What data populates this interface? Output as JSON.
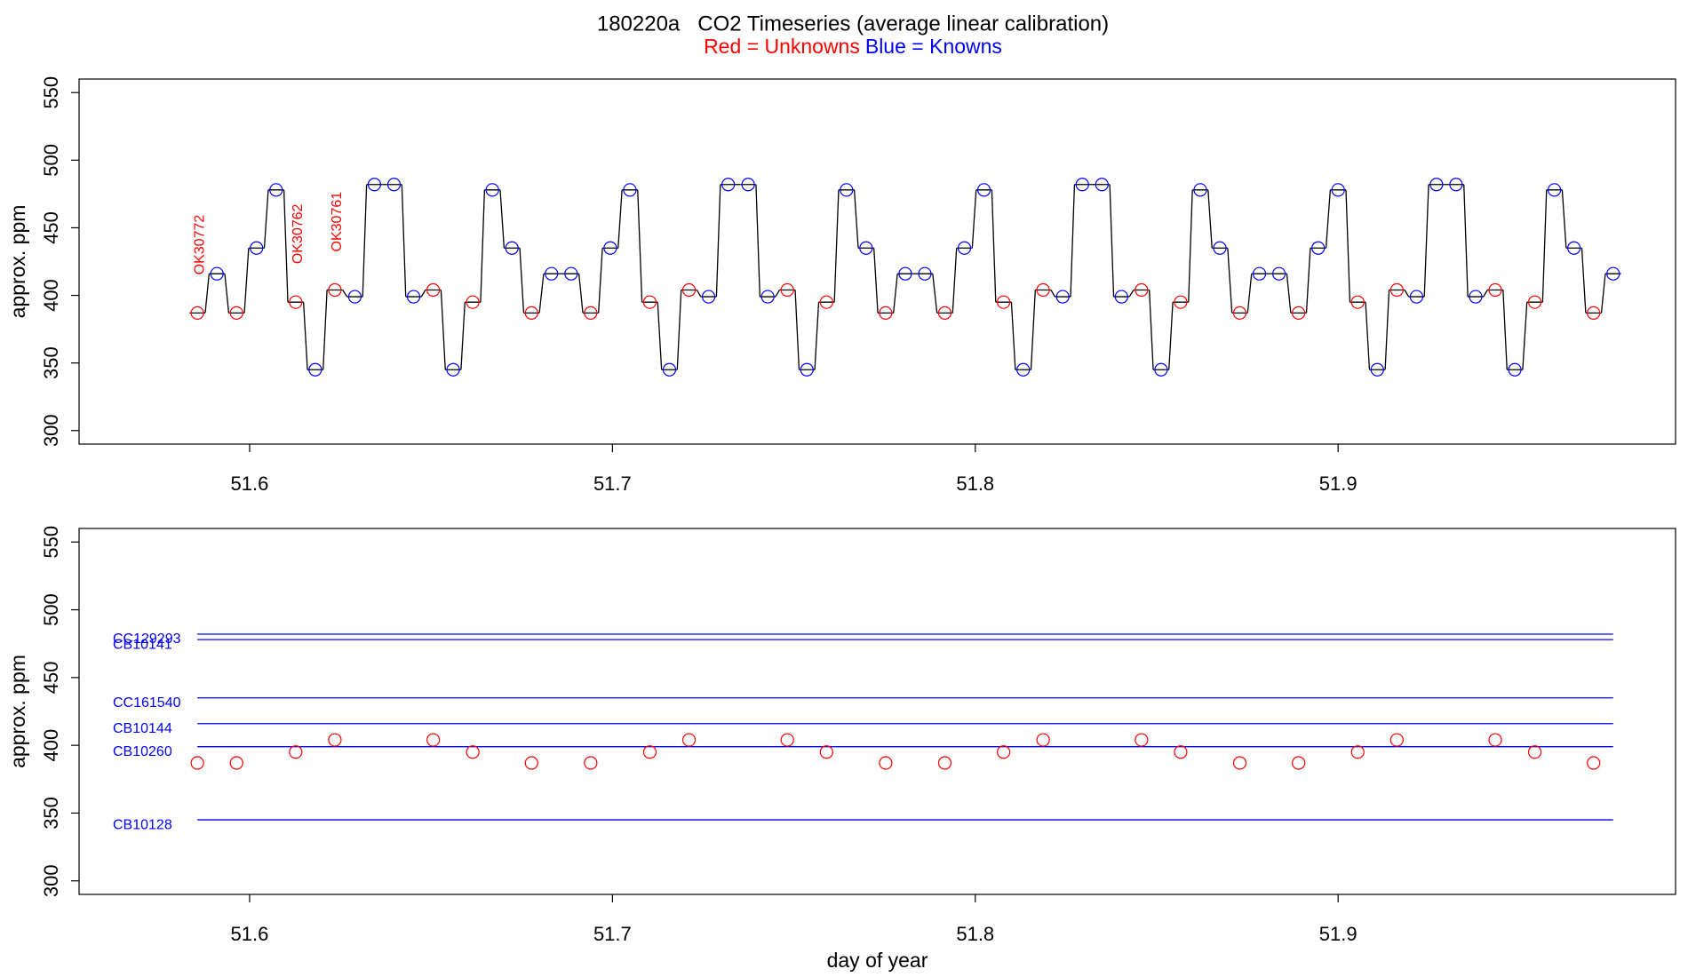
{
  "chart_data": [
    {
      "type": "line",
      "title": "180220a   CO2 Timeseries (average linear calibration)",
      "ylabel": "approx. ppm",
      "xlim": [
        51.553,
        51.993
      ],
      "ylim": [
        290,
        560
      ],
      "xticks": [
        51.6,
        51.7,
        51.8,
        51.9
      ],
      "yticks": [
        300,
        350,
        400,
        450,
        500,
        550
      ],
      "annotations": [
        "OK30772",
        "OK30762",
        "OK30761"
      ],
      "annotation_color": "red",
      "x": [
        51.5856,
        51.591,
        51.5964,
        51.6019,
        51.6073,
        51.6127,
        51.6181,
        51.6235,
        51.629,
        51.6344,
        51.6398,
        51.6452,
        51.6506,
        51.6561,
        51.6615,
        51.6669,
        51.6723,
        51.6777,
        51.6832,
        51.6886,
        51.694,
        51.6994,
        51.7048,
        51.7103,
        51.7157,
        51.7211,
        51.7265,
        51.7319,
        51.7374,
        51.7428,
        51.7482,
        51.7536,
        51.759,
        51.7645,
        51.7699,
        51.7753,
        51.7807,
        51.7861,
        51.7916,
        51.797,
        51.8024,
        51.8078,
        51.8132,
        51.8187,
        51.8241,
        51.8295,
        51.8349,
        51.8403,
        51.8458,
        51.8512,
        51.8566,
        51.862,
        51.8674,
        51.8729,
        51.8783,
        51.8837,
        51.8891,
        51.8945,
        51.9,
        51.9054,
        51.9108,
        51.9162,
        51.9216,
        51.9271,
        51.9325,
        51.9379,
        51.9433,
        51.9487,
        51.9542,
        51.9596,
        51.965,
        51.9704,
        51.9758
      ],
      "series": [
        {
          "color": "black",
          "style": "step",
          "values": [
            387,
            416,
            387,
            435,
            478,
            395,
            345,
            404,
            399,
            482,
            482,
            399,
            404,
            345,
            395,
            478,
            435,
            387,
            416,
            416,
            387,
            435,
            478,
            395,
            345,
            404,
            399,
            482,
            482,
            399,
            404,
            345,
            395,
            478,
            435,
            387,
            416,
            416,
            387,
            435,
            478,
            395,
            345,
            404,
            399,
            482,
            482,
            399,
            404,
            345,
            395,
            478,
            435,
            387,
            416,
            416,
            387,
            435,
            478,
            395,
            345,
            404,
            399,
            482,
            482,
            399,
            404,
            345,
            395,
            478,
            435,
            387,
            416
          ]
        },
        {
          "name": "Red = Unknowns",
          "color": "red",
          "style": "points",
          "values": [
            387,
            null,
            387,
            null,
            null,
            395,
            null,
            404,
            null,
            null,
            null,
            null,
            404,
            null,
            395,
            null,
            null,
            387,
            null,
            null,
            387,
            null,
            null,
            395,
            null,
            404,
            null,
            null,
            null,
            null,
            404,
            null,
            395,
            null,
            null,
            387,
            null,
            null,
            387,
            null,
            null,
            395,
            null,
            404,
            null,
            null,
            null,
            null,
            404,
            null,
            395,
            null,
            null,
            387,
            null,
            null,
            387,
            null,
            null,
            395,
            null,
            404,
            null,
            null,
            null,
            null,
            404,
            null,
            395,
            null,
            null,
            387,
            null
          ]
        },
        {
          "name": "Blue = Knowns",
          "color": "blue",
          "style": "points",
          "values": [
            null,
            416,
            null,
            435,
            478,
            null,
            345,
            null,
            399,
            482,
            482,
            399,
            null,
            345,
            null,
            478,
            435,
            null,
            416,
            416,
            null,
            435,
            478,
            null,
            345,
            null,
            399,
            482,
            482,
            399,
            null,
            345,
            null,
            478,
            435,
            null,
            416,
            416,
            null,
            435,
            478,
            null,
            345,
            null,
            399,
            482,
            482,
            399,
            null,
            345,
            null,
            478,
            435,
            null,
            416,
            416,
            null,
            435,
            478,
            null,
            345,
            null,
            399,
            482,
            482,
            399,
            null,
            345,
            null,
            478,
            435,
            null,
            416
          ]
        }
      ]
    },
    {
      "type": "scatter",
      "ylabel": "approx. ppm",
      "xlabel": "day of year",
      "xlim": [
        51.553,
        51.993
      ],
      "ylim": [
        290,
        560
      ],
      "xticks": [
        51.6,
        51.7,
        51.8,
        51.9
      ],
      "yticks": [
        300,
        350,
        400,
        450,
        500,
        550
      ],
      "hline_x": [
        51.5856,
        51.9758
      ],
      "hlines": [
        {
          "label": "CC129293",
          "value": 482,
          "color": "blue"
        },
        {
          "label": "CB10141",
          "value": 478,
          "color": "blue"
        },
        {
          "label": "CC161540",
          "value": 435,
          "color": "blue"
        },
        {
          "label": "CB10144",
          "value": 416,
          "color": "blue"
        },
        {
          "label": "CB10260",
          "value": 399,
          "color": "blue"
        },
        {
          "label": "CB10128",
          "value": 345,
          "color": "blue"
        }
      ],
      "color": "red",
      "x": [
        51.5856,
        51.5964,
        51.6127,
        51.6235,
        51.6506,
        51.6615,
        51.6777,
        51.694,
        51.7103,
        51.7211,
        51.7482,
        51.759,
        51.7753,
        51.7916,
        51.8078,
        51.8187,
        51.8458,
        51.8566,
        51.8729,
        51.8891,
        51.9054,
        51.9162,
        51.9433,
        51.9542,
        51.9704
      ],
      "values": [
        387,
        387,
        395,
        404,
        404,
        395,
        387,
        387,
        395,
        404,
        404,
        395,
        387,
        387,
        395,
        404,
        404,
        395,
        387,
        387,
        395,
        404,
        404,
        395,
        387
      ]
    }
  ]
}
